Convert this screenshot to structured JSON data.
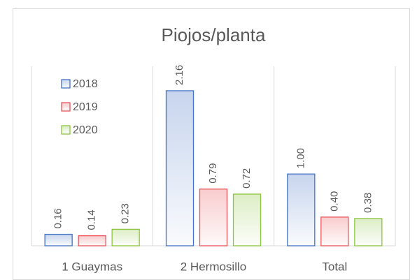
{
  "chart_data": {
    "type": "bar",
    "title": "Piojos/planta",
    "categories": [
      "1 Guaymas",
      "2 Hermosillo",
      "Total"
    ],
    "series": [
      {
        "name": "2018",
        "color": "#4472c4",
        "values": [
          0.16,
          2.16,
          1.0
        ],
        "value_labels": [
          "0.16",
          "2.16",
          "1.00"
        ]
      },
      {
        "name": "2019",
        "color": "#e8555a",
        "values": [
          0.14,
          0.79,
          0.4
        ],
        "value_labels": [
          "0.14",
          "0.79",
          "0.40"
        ]
      },
      {
        "name": "2020",
        "color": "#8cc63f",
        "values": [
          0.23,
          0.72,
          0.38
        ],
        "value_labels": [
          "0.23",
          "0.72",
          "0.38"
        ]
      }
    ],
    "ylim": [
      0,
      2.5
    ],
    "legend": "upper left"
  }
}
